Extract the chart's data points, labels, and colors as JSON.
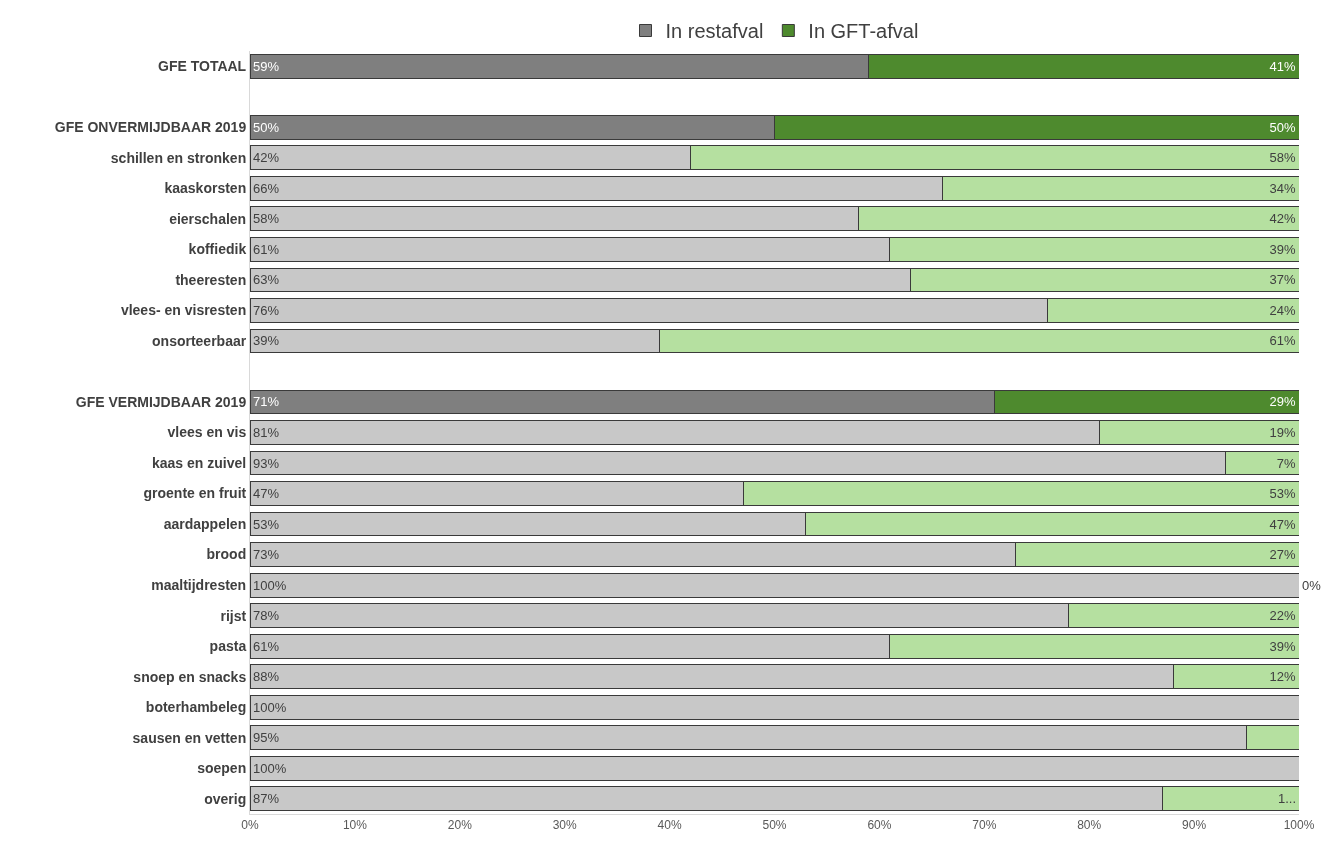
{
  "chart_data": {
    "type": "bar",
    "orientation": "horizontal",
    "stacked": true,
    "legend": "top",
    "categories": [
      "GFE TOTAAL",
      null,
      "GFE ONVERMIJDBAAR 2019",
      "schillen en stronken",
      "kaaskorsten",
      "eierschalen",
      "koffiedik",
      "theeresten",
      "vlees- en visresten",
      "onsorteerbaar",
      null,
      "GFE VERMIJDBAAR 2019",
      "vlees en vis",
      "kaas en zuivel",
      "groente en fruit",
      "aardappelen",
      "brood",
      "maaltijdresten",
      "rijst",
      "pasta",
      "snoep en snacks",
      "boterhambeleg",
      "sausen en vetten",
      "soepen",
      "overig"
    ],
    "xlim": [
      0,
      100
    ],
    "xticks": [
      {
        "value": 0,
        "label": "0%"
      },
      {
        "value": 10,
        "label": "10%"
      },
      {
        "value": 20,
        "label": "20%"
      },
      {
        "value": 30,
        "label": "30%"
      },
      {
        "value": 40,
        "label": "40%"
      },
      {
        "value": 50,
        "label": "50%"
      },
      {
        "value": 60,
        "label": "60%"
      },
      {
        "value": 70,
        "label": "70%"
      },
      {
        "value": 80,
        "label": "80%"
      },
      {
        "value": 90,
        "label": "90%"
      },
      {
        "value": 100,
        "label": "100%"
      }
    ],
    "series": [
      {
        "name": "In restafval",
        "color": "#7f7f7f",
        "colors": [
          null,
          null,
          null,
          "#c8c8c8",
          "#c8c8c8",
          "#c8c8c8",
          "#c8c8c8",
          "#c8c8c8",
          "#c8c8c8",
          "#c8c8c8",
          null,
          null,
          "#c8c8c8",
          "#c8c8c8",
          "#c8c8c8",
          "#c8c8c8",
          "#c8c8c8",
          "#c8c8c8",
          "#c8c8c8",
          "#c8c8c8",
          "#c8c8c8",
          "#c8c8c8",
          "#c8c8c8",
          "#c8c8c8",
          "#c8c8c8"
        ],
        "values": [
          59,
          null,
          50,
          42,
          66,
          58,
          61,
          63,
          76,
          39,
          null,
          71,
          81,
          93,
          47,
          53,
          73,
          100,
          78,
          61,
          88,
          100,
          95,
          100,
          87
        ],
        "value_labels": [
          "59%",
          null,
          "50%",
          "42%",
          "66%",
          "58%",
          "61%",
          "63%",
          "76%",
          "39%",
          null,
          "71%",
          "81%",
          "93%",
          "47%",
          "53%",
          "73%",
          "100%",
          "78%",
          "61%",
          "88%",
          "100%",
          "95%",
          "100%",
          "87%"
        ]
      },
      {
        "name": "In GFT-afval",
        "color": "#4e8a2e",
        "colors": [
          null,
          null,
          null,
          "#b5e0a0",
          "#b5e0a0",
          "#b5e0a0",
          "#b5e0a0",
          "#b5e0a0",
          "#b5e0a0",
          "#b5e0a0",
          null,
          null,
          "#b5e0a0",
          "#b5e0a0",
          "#b5e0a0",
          "#b5e0a0",
          "#b5e0a0",
          "#b5e0a0",
          "#b5e0a0",
          "#b5e0a0",
          "#b5e0a0",
          "#b5e0a0",
          "#b5e0a0",
          "#b5e0a0",
          "#b5e0a0"
        ],
        "values": [
          41,
          null,
          50,
          58,
          34,
          42,
          39,
          37,
          24,
          61,
          null,
          29,
          19,
          7,
          53,
          47,
          27,
          0,
          22,
          39,
          12,
          0,
          5,
          0,
          13
        ],
        "value_labels": [
          "41%",
          null,
          "50%",
          "58%",
          "34%",
          "42%",
          "39%",
          "37%",
          "24%",
          "61%",
          null,
          "29%",
          "19%",
          "7%",
          "53%",
          "47%",
          "27%",
          "0%",
          "22%",
          "39%",
          "12%",
          null,
          null,
          null,
          "1..."
        ]
      }
    ]
  }
}
